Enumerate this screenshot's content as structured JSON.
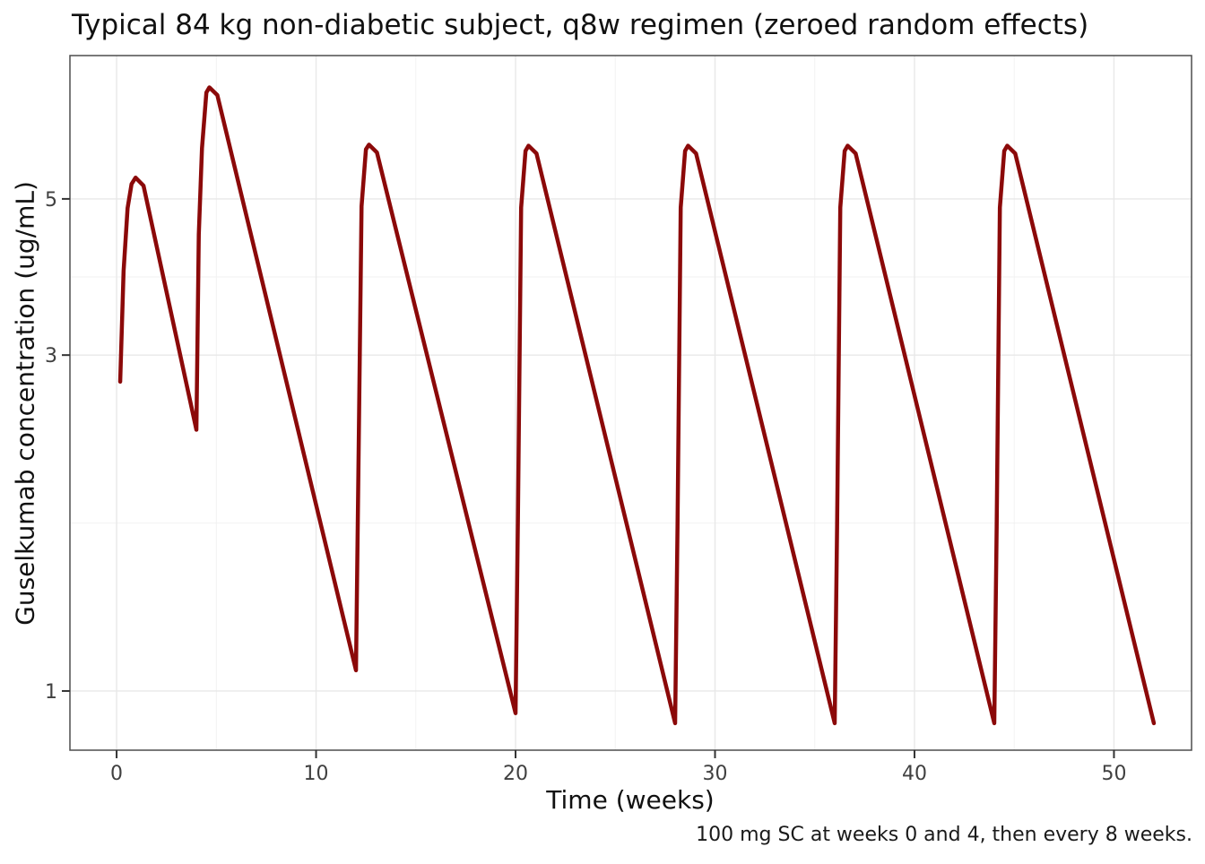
{
  "chart_data": {
    "type": "line",
    "title": "Typical 84 kg non-diabetic subject, q8w regimen (zeroed random effects)",
    "xlabel": "Time (weeks)",
    "ylabel": "Guselkumab concentration (ug/mL)",
    "caption": "100 mg SC at weeks 0 and 4, then every 8 weeks.",
    "y_scale": "log10",
    "xlim": [
      -2.34,
      53.89
    ],
    "ylim": [
      0.824,
      7.99
    ],
    "x_major_ticks": [
      0,
      10,
      20,
      30,
      40,
      50
    ],
    "x_minor_gridlines": [
      5,
      15,
      25,
      35,
      45
    ],
    "y_major_ticks": [
      1,
      3,
      5
    ],
    "y_minor_gridlines": [
      1.732,
      3.873
    ],
    "grid": true,
    "legend": "none",
    "series": [
      {
        "name": "Guselkumab concentration",
        "color": "#8B0909",
        "line_width": 4.5,
        "points": [
          [
            0.18,
            2.75
          ],
          [
            0.35,
            3.95
          ],
          [
            0.55,
            4.85
          ],
          [
            0.75,
            5.25
          ],
          [
            0.95,
            5.36
          ],
          [
            1.35,
            5.22
          ],
          [
            4.0,
            2.35
          ],
          [
            4.12,
            4.45
          ],
          [
            4.28,
            5.9
          ],
          [
            4.5,
            7.08
          ],
          [
            4.65,
            7.2
          ],
          [
            5.05,
            7.02
          ],
          [
            12.0,
            1.07
          ],
          [
            12.12,
            2.03
          ],
          [
            12.28,
            4.88
          ],
          [
            12.5,
            5.88
          ],
          [
            12.65,
            5.97
          ],
          [
            13.05,
            5.82
          ],
          [
            20.0,
            0.93
          ],
          [
            20.12,
            1.77
          ],
          [
            20.28,
            4.86
          ],
          [
            20.5,
            5.85
          ],
          [
            20.65,
            5.95
          ],
          [
            21.05,
            5.8
          ],
          [
            28.0,
            0.9
          ],
          [
            28.12,
            1.71
          ],
          [
            28.28,
            4.86
          ],
          [
            28.5,
            5.85
          ],
          [
            28.65,
            5.95
          ],
          [
            29.05,
            5.8
          ],
          [
            36.0,
            0.9
          ],
          [
            36.12,
            1.71
          ],
          [
            36.28,
            4.86
          ],
          [
            36.5,
            5.85
          ],
          [
            36.65,
            5.95
          ],
          [
            37.05,
            5.8
          ],
          [
            44.0,
            0.9
          ],
          [
            44.12,
            1.71
          ],
          [
            44.28,
            4.86
          ],
          [
            44.5,
            5.85
          ],
          [
            44.65,
            5.95
          ],
          [
            45.05,
            5.8
          ],
          [
            52.0,
            0.9
          ]
        ]
      }
    ],
    "annotations": {
      "dose": "100 mg SC",
      "dose_weeks": [
        0,
        4,
        12,
        20,
        28,
        36,
        44
      ],
      "peaks": [
        [
          0.95,
          5.36
        ],
        [
          4.65,
          7.2
        ],
        [
          12.65,
          5.97
        ],
        [
          20.65,
          5.95
        ],
        [
          28.65,
          5.95
        ],
        [
          36.65,
          5.95
        ],
        [
          44.65,
          5.95
        ]
      ],
      "troughs": [
        [
          4,
          2.35
        ],
        [
          12,
          1.07
        ],
        [
          20,
          0.93
        ],
        [
          28,
          0.9
        ],
        [
          36,
          0.9
        ],
        [
          44,
          0.9
        ],
        [
          52,
          0.9
        ]
      ]
    }
  },
  "theme": {
    "background": "#ffffff",
    "panel_background": "#ffffff",
    "panel_border": "#4d4d4d",
    "grid_major": "#e8e8e8",
    "grid_minor": "#f2f2f2",
    "tick_color": "#333333",
    "tick_label_color": "#404040",
    "text_color": "#111111",
    "line_color": "#8B0909"
  }
}
